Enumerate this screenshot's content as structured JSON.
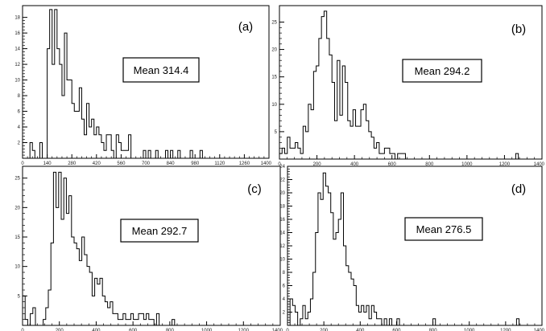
{
  "chart_data": [
    {
      "type": "histogram",
      "panel_label": "(a)",
      "annotation": "Mean 314.4",
      "xlim": [
        0,
        1400
      ],
      "ylim": [
        0,
        19.5
      ],
      "xticks": [
        0,
        140,
        280,
        420,
        560,
        700,
        840,
        980,
        1120,
        1260,
        1400
      ],
      "yticks": [
        0,
        2,
        4,
        6,
        8,
        10,
        12,
        14,
        16,
        18
      ],
      "bin_width": 14,
      "bins": [
        [
          0,
          0
        ],
        [
          14,
          0
        ],
        [
          28,
          0
        ],
        [
          42,
          2
        ],
        [
          56,
          1
        ],
        [
          70,
          0
        ],
        [
          84,
          0
        ],
        [
          98,
          2
        ],
        [
          112,
          0
        ],
        [
          126,
          0
        ],
        [
          140,
          14
        ],
        [
          154,
          19
        ],
        [
          168,
          12
        ],
        [
          182,
          19
        ],
        [
          196,
          14
        ],
        [
          210,
          12
        ],
        [
          224,
          8
        ],
        [
          238,
          16
        ],
        [
          252,
          10
        ],
        [
          266,
          10
        ],
        [
          280,
          7
        ],
        [
          294,
          6
        ],
        [
          308,
          6
        ],
        [
          322,
          9
        ],
        [
          336,
          5
        ],
        [
          350,
          3
        ],
        [
          364,
          7
        ],
        [
          378,
          4
        ],
        [
          392,
          5
        ],
        [
          406,
          3
        ],
        [
          420,
          4
        ],
        [
          434,
          3
        ],
        [
          448,
          2
        ],
        [
          462,
          1
        ],
        [
          476,
          3
        ],
        [
          490,
          3
        ],
        [
          504,
          1
        ],
        [
          518,
          0
        ],
        [
          532,
          3
        ],
        [
          546,
          2
        ],
        [
          560,
          1
        ],
        [
          574,
          1
        ],
        [
          588,
          1
        ],
        [
          602,
          3
        ],
        [
          616,
          0
        ],
        [
          630,
          0
        ],
        [
          644,
          0
        ],
        [
          658,
          0
        ],
        [
          672,
          0
        ],
        [
          686,
          1
        ],
        [
          700,
          0
        ],
        [
          714,
          1
        ],
        [
          728,
          0
        ],
        [
          742,
          0
        ],
        [
          756,
          1
        ],
        [
          770,
          0
        ],
        [
          784,
          0
        ],
        [
          798,
          0
        ],
        [
          812,
          1
        ],
        [
          826,
          0
        ],
        [
          840,
          1
        ],
        [
          854,
          0
        ],
        [
          868,
          0
        ],
        [
          882,
          1
        ],
        [
          896,
          0
        ],
        [
          910,
          0
        ],
        [
          924,
          0
        ],
        [
          938,
          0
        ],
        [
          952,
          1
        ],
        [
          966,
          0
        ],
        [
          980,
          0
        ],
        [
          994,
          0
        ],
        [
          1008,
          1
        ],
        [
          1022,
          0
        ]
      ]
    },
    {
      "type": "histogram",
      "panel_label": "(b)",
      "annotation": "Mean 294.2",
      "xlim": [
        0,
        1400
      ],
      "ylim": [
        0,
        28
      ],
      "xticks": [
        0,
        200,
        400,
        600,
        800,
        1000,
        1200,
        1400
      ],
      "yticks": [
        0,
        5,
        10,
        15,
        20,
        25
      ],
      "bin_width": 14,
      "bins": [
        [
          0,
          1
        ],
        [
          14,
          2
        ],
        [
          28,
          1
        ],
        [
          42,
          4
        ],
        [
          56,
          2
        ],
        [
          70,
          2
        ],
        [
          84,
          3
        ],
        [
          98,
          2
        ],
        [
          112,
          1
        ],
        [
          126,
          6
        ],
        [
          140,
          5
        ],
        [
          154,
          10
        ],
        [
          168,
          9
        ],
        [
          182,
          16
        ],
        [
          196,
          17
        ],
        [
          210,
          22
        ],
        [
          224,
          26
        ],
        [
          238,
          27
        ],
        [
          252,
          22
        ],
        [
          266,
          19
        ],
        [
          280,
          14
        ],
        [
          294,
          7
        ],
        [
          308,
          18
        ],
        [
          322,
          8
        ],
        [
          336,
          17
        ],
        [
          350,
          14
        ],
        [
          364,
          7
        ],
        [
          378,
          6
        ],
        [
          392,
          9
        ],
        [
          406,
          6
        ],
        [
          420,
          6
        ],
        [
          434,
          9
        ],
        [
          448,
          10
        ],
        [
          462,
          7
        ],
        [
          476,
          5
        ],
        [
          490,
          4
        ],
        [
          504,
          2
        ],
        [
          518,
          3
        ],
        [
          532,
          1
        ],
        [
          546,
          1
        ],
        [
          560,
          2
        ],
        [
          574,
          2
        ],
        [
          588,
          1
        ],
        [
          602,
          1
        ],
        [
          616,
          0
        ],
        [
          630,
          1
        ],
        [
          644,
          1
        ],
        [
          658,
          1
        ],
        [
          672,
          0
        ],
        [
          686,
          0
        ],
        [
          700,
          0
        ],
        [
          714,
          0
        ],
        [
          728,
          0
        ],
        [
          742,
          0
        ],
        [
          756,
          0
        ],
        [
          770,
          0
        ],
        [
          784,
          0
        ],
        [
          798,
          0
        ],
        [
          1260,
          1
        ]
      ]
    },
    {
      "type": "histogram",
      "panel_label": "(c)",
      "annotation": "Mean 292.7",
      "xlim": [
        0,
        1400
      ],
      "ylim": [
        0,
        27
      ],
      "xticks": [
        0,
        200,
        400,
        600,
        800,
        1000,
        1200,
        1400
      ],
      "yticks": [
        0,
        5,
        10,
        15,
        20,
        25
      ],
      "bin_width": 14,
      "bins": [
        [
          0,
          5
        ],
        [
          14,
          1
        ],
        [
          28,
          0
        ],
        [
          42,
          2
        ],
        [
          56,
          3
        ],
        [
          70,
          0
        ],
        [
          84,
          0
        ],
        [
          98,
          0
        ],
        [
          112,
          1
        ],
        [
          126,
          3
        ],
        [
          140,
          6
        ],
        [
          154,
          14
        ],
        [
          168,
          26
        ],
        [
          182,
          20
        ],
        [
          196,
          26
        ],
        [
          210,
          18
        ],
        [
          224,
          25
        ],
        [
          238,
          19
        ],
        [
          252,
          22
        ],
        [
          266,
          15
        ],
        [
          280,
          14
        ],
        [
          294,
          13
        ],
        [
          308,
          11
        ],
        [
          322,
          15
        ],
        [
          336,
          12
        ],
        [
          350,
          10
        ],
        [
          364,
          9
        ],
        [
          378,
          5
        ],
        [
          392,
          8
        ],
        [
          406,
          7
        ],
        [
          420,
          8
        ],
        [
          434,
          5
        ],
        [
          448,
          4
        ],
        [
          462,
          3
        ],
        [
          476,
          4
        ],
        [
          490,
          2
        ],
        [
          504,
          2
        ],
        [
          518,
          1
        ],
        [
          532,
          1
        ],
        [
          546,
          2
        ],
        [
          560,
          1
        ],
        [
          574,
          1
        ],
        [
          588,
          2
        ],
        [
          602,
          1
        ],
        [
          616,
          1
        ],
        [
          630,
          2
        ],
        [
          644,
          2
        ],
        [
          658,
          1
        ],
        [
          672,
          2
        ],
        [
          686,
          1
        ],
        [
          700,
          1
        ],
        [
          714,
          0
        ],
        [
          728,
          2
        ],
        [
          742,
          0
        ],
        [
          756,
          0
        ],
        [
          770,
          0
        ],
        [
          784,
          0
        ],
        [
          798,
          0
        ],
        [
          812,
          1
        ],
        [
          826,
          0
        ]
      ]
    },
    {
      "type": "histogram",
      "panel_label": "(d)",
      "annotation": "Mean 276.5",
      "xlim": [
        0,
        1400
      ],
      "ylim": [
        0,
        24
      ],
      "xticks": [
        0,
        200,
        400,
        600,
        800,
        1000,
        1200,
        1400
      ],
      "yticks": [
        0,
        2,
        4,
        6,
        8,
        10,
        12,
        14,
        16,
        18,
        20,
        22,
        24
      ],
      "bin_width": 14,
      "bins": [
        [
          0,
          0
        ],
        [
          14,
          4
        ],
        [
          28,
          3
        ],
        [
          42,
          2
        ],
        [
          56,
          0
        ],
        [
          70,
          1
        ],
        [
          84,
          3
        ],
        [
          98,
          1
        ],
        [
          112,
          2
        ],
        [
          126,
          4
        ],
        [
          140,
          8
        ],
        [
          154,
          14
        ],
        [
          168,
          20
        ],
        [
          182,
          19
        ],
        [
          196,
          23
        ],
        [
          210,
          21
        ],
        [
          224,
          20
        ],
        [
          238,
          17
        ],
        [
          252,
          13
        ],
        [
          266,
          14
        ],
        [
          280,
          16
        ],
        [
          294,
          20
        ],
        [
          308,
          12
        ],
        [
          322,
          9
        ],
        [
          336,
          8
        ],
        [
          350,
          7
        ],
        [
          364,
          6
        ],
        [
          378,
          3
        ],
        [
          392,
          2
        ],
        [
          406,
          3
        ],
        [
          420,
          2
        ],
        [
          434,
          3
        ],
        [
          448,
          1
        ],
        [
          462,
          3
        ],
        [
          476,
          2
        ],
        [
          490,
          1
        ],
        [
          504,
          1
        ],
        [
          518,
          0
        ],
        [
          532,
          1
        ],
        [
          546,
          0
        ],
        [
          560,
          1
        ],
        [
          574,
          0
        ],
        [
          588,
          0
        ],
        [
          602,
          1
        ],
        [
          616,
          0
        ],
        [
          630,
          0
        ],
        [
          644,
          0
        ],
        [
          658,
          0
        ],
        [
          672,
          0
        ],
        [
          800,
          1
        ],
        [
          1260,
          1
        ]
      ]
    }
  ]
}
